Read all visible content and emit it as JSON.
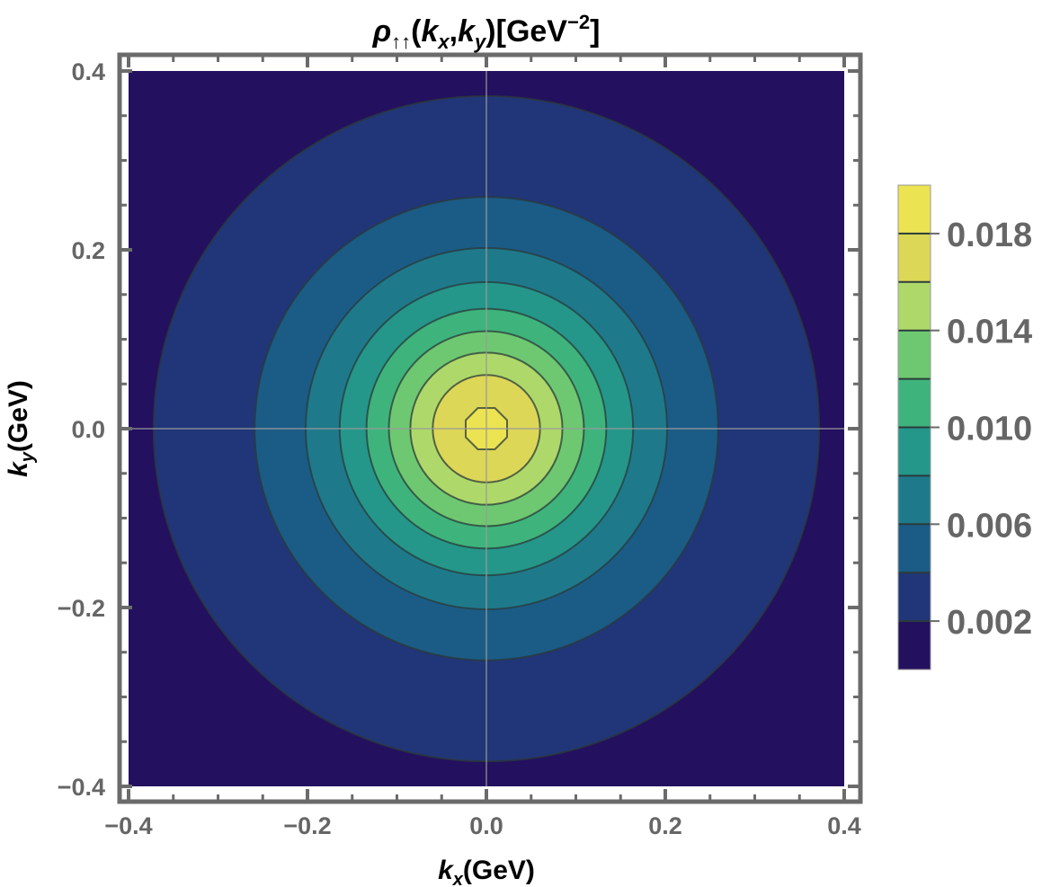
{
  "chart_data": {
    "type": "contour",
    "title": {
      "symbol": "ρ",
      "subscript": "↑↑",
      "args_open": "(",
      "arg1": "k",
      "arg1_sub": "x",
      "comma": ",",
      "arg2": "k",
      "arg2_sub": "y",
      "args_close": ")",
      "unit_open": "[GeV",
      "unit_exp": "−2",
      "unit_close": "]"
    },
    "xlabel": {
      "var": "k",
      "sub": "x",
      "unit": "(GeV)"
    },
    "ylabel": {
      "var": "k",
      "sub": "y",
      "unit": "(GeV)"
    },
    "xlim": [
      -0.4,
      0.4
    ],
    "ylim": [
      -0.4,
      0.4
    ],
    "x_ticks": [
      {
        "value": -0.4,
        "label": "−0.4"
      },
      {
        "value": -0.2,
        "label": "−0.2"
      },
      {
        "value": 0.0,
        "label": "0.0"
      },
      {
        "value": 0.2,
        "label": "0.2"
      },
      {
        "value": 0.4,
        "label": "0.4"
      }
    ],
    "y_ticks": [
      {
        "value": -0.4,
        "label": "−0.4"
      },
      {
        "value": -0.2,
        "label": "−0.2"
      },
      {
        "value": 0.0,
        "label": "0.0"
      },
      {
        "value": 0.2,
        "label": "0.2"
      },
      {
        "value": 0.4,
        "label": "0.4"
      }
    ],
    "grid_lines_at_zero": true,
    "contour_levels": [
      0.002,
      0.004,
      0.006,
      0.008,
      0.01,
      0.012,
      0.014,
      0.016,
      0.018
    ],
    "contour_radii_gev": [
      0.372,
      0.259,
      0.202,
      0.164,
      0.134,
      0.109,
      0.085,
      0.06,
      0.025
    ],
    "band_colors": [
      "#23105f",
      "#213678",
      "#1b5c86",
      "#1e7a8b",
      "#24978a",
      "#3eb47c",
      "#6ec871",
      "#aed96a",
      "#ddd757",
      "#ebe351"
    ],
    "colorbar": {
      "range": [
        0.0,
        0.02
      ],
      "placement": "right",
      "ticks": [
        {
          "value": 0.002,
          "label": "0.002"
        },
        {
          "value": 0.006,
          "label": "0.006"
        },
        {
          "value": 0.01,
          "label": "0.010"
        },
        {
          "value": 0.014,
          "label": "0.014"
        },
        {
          "value": 0.018,
          "label": "0.018"
        }
      ]
    }
  }
}
